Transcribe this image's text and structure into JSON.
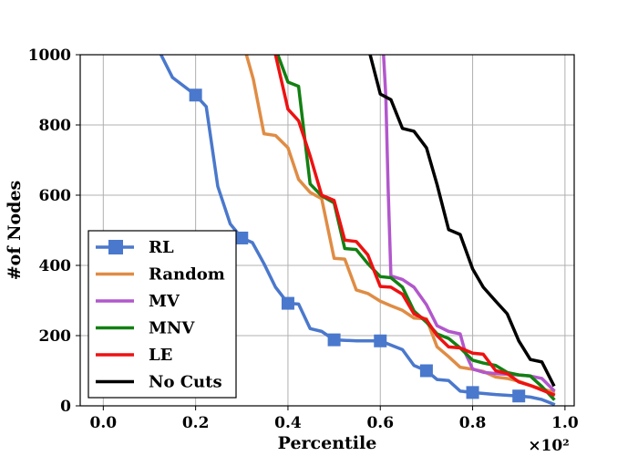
{
  "chart_data": {
    "type": "line",
    "title": "",
    "xlabel": "Percentile",
    "ylabel": "#of Nodes",
    "x_offset_label": "×10²",
    "xlim": [
      -0.05,
      1.02
    ],
    "ylim": [
      0,
      1000
    ],
    "xticks": [
      0.0,
      0.2,
      0.4,
      0.6,
      0.8,
      1.0
    ],
    "xtick_labels": [
      "0.0",
      "0.2",
      "0.4",
      "0.6",
      "0.8",
      "1.0"
    ],
    "yticks": [
      0,
      200,
      400,
      600,
      800,
      1000
    ],
    "ytick_labels": [
      "0",
      "200",
      "400",
      "600",
      "800",
      "1000"
    ],
    "grid": true,
    "legend_position": "lower-left",
    "series": [
      {
        "name": "RL",
        "color": "#4a78cc",
        "marker": "square",
        "marker_x": [
          0.2,
          0.3,
          0.4,
          0.5,
          0.6,
          0.7,
          0.8,
          0.9
        ],
        "x": [
          0.125,
          0.15,
          0.2,
          0.223,
          0.248,
          0.275,
          0.3,
          0.323,
          0.348,
          0.373,
          0.4,
          0.423,
          0.448,
          0.473,
          0.5,
          0.55,
          0.6,
          0.648,
          0.673,
          0.7,
          0.723,
          0.748,
          0.773,
          0.8,
          0.85,
          0.9,
          0.925,
          0.95,
          0.975
        ],
        "y": [
          1000,
          935,
          885,
          852,
          625,
          518,
          478,
          465,
          405,
          338,
          292,
          290,
          220,
          212,
          188,
          185,
          185,
          160,
          115,
          100,
          75,
          72,
          42,
          38,
          32,
          28,
          25,
          18,
          5
        ]
      },
      {
        "name": "Random",
        "color": "#e08c44",
        "x": [
          0.31,
          0.325,
          0.348,
          0.373,
          0.4,
          0.423,
          0.448,
          0.473,
          0.5,
          0.523,
          0.548,
          0.573,
          0.6,
          0.623,
          0.648,
          0.673,
          0.7,
          0.723,
          0.748,
          0.773,
          0.8,
          0.823,
          0.85,
          0.875,
          0.9,
          0.925,
          0.95,
          0.975
        ],
        "y": [
          1000,
          930,
          775,
          770,
          735,
          645,
          608,
          590,
          420,
          418,
          330,
          320,
          298,
          285,
          272,
          250,
          248,
          168,
          140,
          110,
          104,
          98,
          82,
          78,
          70,
          58,
          48,
          40
        ]
      },
      {
        "name": "MV",
        "color": "#b257cc",
        "x": [
          0.607,
          0.612,
          0.617,
          0.623,
          0.648,
          0.673,
          0.7,
          0.723,
          0.748,
          0.773,
          0.785,
          0.8,
          0.825,
          0.85,
          0.875,
          0.9,
          0.925,
          0.95,
          0.975
        ],
        "y": [
          1000,
          880,
          620,
          370,
          360,
          338,
          288,
          228,
          212,
          205,
          148,
          105,
          95,
          92,
          90,
          88,
          85,
          78,
          45
        ]
      },
      {
        "name": "MNV",
        "color": "#128012",
        "x": [
          0.378,
          0.4,
          0.423,
          0.448,
          0.473,
          0.5,
          0.523,
          0.548,
          0.573,
          0.6,
          0.623,
          0.648,
          0.673,
          0.7,
          0.723,
          0.748,
          0.773,
          0.8,
          0.823,
          0.85,
          0.875,
          0.9,
          0.925,
          0.95,
          0.975
        ],
        "y": [
          1000,
          922,
          910,
          632,
          598,
          578,
          448,
          445,
          405,
          368,
          365,
          338,
          270,
          238,
          205,
          192,
          165,
          130,
          122,
          115,
          95,
          88,
          85,
          55,
          20
        ]
      },
      {
        "name": "LE",
        "color": "#ee1111",
        "x": [
          0.373,
          0.4,
          0.423,
          0.448,
          0.473,
          0.5,
          0.523,
          0.548,
          0.573,
          0.6,
          0.623,
          0.648,
          0.673,
          0.7,
          0.723,
          0.748,
          0.773,
          0.8,
          0.823,
          0.85,
          0.875,
          0.9,
          0.925,
          0.95,
          0.975
        ],
        "y": [
          1000,
          845,
          812,
          712,
          600,
          585,
          472,
          468,
          430,
          340,
          338,
          318,
          262,
          245,
          200,
          168,
          165,
          150,
          147,
          100,
          92,
          68,
          58,
          45,
          32
        ]
      },
      {
        "name": "No Cuts",
        "color": "#000000",
        "x": [
          0.578,
          0.6,
          0.623,
          0.648,
          0.673,
          0.7,
          0.723,
          0.748,
          0.773,
          0.8,
          0.823,
          0.85,
          0.875,
          0.9,
          0.925,
          0.95,
          0.975
        ],
        "y": [
          1000,
          888,
          872,
          790,
          782,
          735,
          630,
          502,
          488,
          390,
          338,
          298,
          262,
          185,
          132,
          125,
          60
        ]
      }
    ]
  }
}
